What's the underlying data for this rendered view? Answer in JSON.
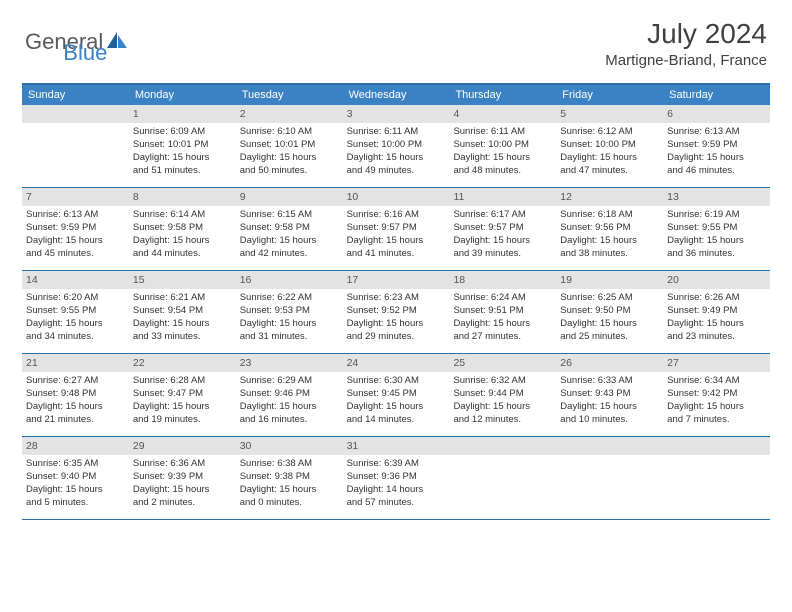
{
  "logo": {
    "text1": "General",
    "text2": "Blue"
  },
  "title": "July 2024",
  "location": "Martigne-Briand, France",
  "weekdays": [
    "Sunday",
    "Monday",
    "Tuesday",
    "Wednesday",
    "Thursday",
    "Friday",
    "Saturday"
  ],
  "colors": {
    "header_bg": "#3b82c4",
    "border": "#2a6faa",
    "daynum_bg": "#e3e3e3",
    "text": "#333333"
  },
  "weeks": [
    [
      {
        "n": "",
        "sr": "",
        "ss": "",
        "dl1": "",
        "dl2": ""
      },
      {
        "n": "1",
        "sr": "Sunrise: 6:09 AM",
        "ss": "Sunset: 10:01 PM",
        "dl1": "Daylight: 15 hours",
        "dl2": "and 51 minutes."
      },
      {
        "n": "2",
        "sr": "Sunrise: 6:10 AM",
        "ss": "Sunset: 10:01 PM",
        "dl1": "Daylight: 15 hours",
        "dl2": "and 50 minutes."
      },
      {
        "n": "3",
        "sr": "Sunrise: 6:11 AM",
        "ss": "Sunset: 10:00 PM",
        "dl1": "Daylight: 15 hours",
        "dl2": "and 49 minutes."
      },
      {
        "n": "4",
        "sr": "Sunrise: 6:11 AM",
        "ss": "Sunset: 10:00 PM",
        "dl1": "Daylight: 15 hours",
        "dl2": "and 48 minutes."
      },
      {
        "n": "5",
        "sr": "Sunrise: 6:12 AM",
        "ss": "Sunset: 10:00 PM",
        "dl1": "Daylight: 15 hours",
        "dl2": "and 47 minutes."
      },
      {
        "n": "6",
        "sr": "Sunrise: 6:13 AM",
        "ss": "Sunset: 9:59 PM",
        "dl1": "Daylight: 15 hours",
        "dl2": "and 46 minutes."
      }
    ],
    [
      {
        "n": "7",
        "sr": "Sunrise: 6:13 AM",
        "ss": "Sunset: 9:59 PM",
        "dl1": "Daylight: 15 hours",
        "dl2": "and 45 minutes."
      },
      {
        "n": "8",
        "sr": "Sunrise: 6:14 AM",
        "ss": "Sunset: 9:58 PM",
        "dl1": "Daylight: 15 hours",
        "dl2": "and 44 minutes."
      },
      {
        "n": "9",
        "sr": "Sunrise: 6:15 AM",
        "ss": "Sunset: 9:58 PM",
        "dl1": "Daylight: 15 hours",
        "dl2": "and 42 minutes."
      },
      {
        "n": "10",
        "sr": "Sunrise: 6:16 AM",
        "ss": "Sunset: 9:57 PM",
        "dl1": "Daylight: 15 hours",
        "dl2": "and 41 minutes."
      },
      {
        "n": "11",
        "sr": "Sunrise: 6:17 AM",
        "ss": "Sunset: 9:57 PM",
        "dl1": "Daylight: 15 hours",
        "dl2": "and 39 minutes."
      },
      {
        "n": "12",
        "sr": "Sunrise: 6:18 AM",
        "ss": "Sunset: 9:56 PM",
        "dl1": "Daylight: 15 hours",
        "dl2": "and 38 minutes."
      },
      {
        "n": "13",
        "sr": "Sunrise: 6:19 AM",
        "ss": "Sunset: 9:55 PM",
        "dl1": "Daylight: 15 hours",
        "dl2": "and 36 minutes."
      }
    ],
    [
      {
        "n": "14",
        "sr": "Sunrise: 6:20 AM",
        "ss": "Sunset: 9:55 PM",
        "dl1": "Daylight: 15 hours",
        "dl2": "and 34 minutes."
      },
      {
        "n": "15",
        "sr": "Sunrise: 6:21 AM",
        "ss": "Sunset: 9:54 PM",
        "dl1": "Daylight: 15 hours",
        "dl2": "and 33 minutes."
      },
      {
        "n": "16",
        "sr": "Sunrise: 6:22 AM",
        "ss": "Sunset: 9:53 PM",
        "dl1": "Daylight: 15 hours",
        "dl2": "and 31 minutes."
      },
      {
        "n": "17",
        "sr": "Sunrise: 6:23 AM",
        "ss": "Sunset: 9:52 PM",
        "dl1": "Daylight: 15 hours",
        "dl2": "and 29 minutes."
      },
      {
        "n": "18",
        "sr": "Sunrise: 6:24 AM",
        "ss": "Sunset: 9:51 PM",
        "dl1": "Daylight: 15 hours",
        "dl2": "and 27 minutes."
      },
      {
        "n": "19",
        "sr": "Sunrise: 6:25 AM",
        "ss": "Sunset: 9:50 PM",
        "dl1": "Daylight: 15 hours",
        "dl2": "and 25 minutes."
      },
      {
        "n": "20",
        "sr": "Sunrise: 6:26 AM",
        "ss": "Sunset: 9:49 PM",
        "dl1": "Daylight: 15 hours",
        "dl2": "and 23 minutes."
      }
    ],
    [
      {
        "n": "21",
        "sr": "Sunrise: 6:27 AM",
        "ss": "Sunset: 9:48 PM",
        "dl1": "Daylight: 15 hours",
        "dl2": "and 21 minutes."
      },
      {
        "n": "22",
        "sr": "Sunrise: 6:28 AM",
        "ss": "Sunset: 9:47 PM",
        "dl1": "Daylight: 15 hours",
        "dl2": "and 19 minutes."
      },
      {
        "n": "23",
        "sr": "Sunrise: 6:29 AM",
        "ss": "Sunset: 9:46 PM",
        "dl1": "Daylight: 15 hours",
        "dl2": "and 16 minutes."
      },
      {
        "n": "24",
        "sr": "Sunrise: 6:30 AM",
        "ss": "Sunset: 9:45 PM",
        "dl1": "Daylight: 15 hours",
        "dl2": "and 14 minutes."
      },
      {
        "n": "25",
        "sr": "Sunrise: 6:32 AM",
        "ss": "Sunset: 9:44 PM",
        "dl1": "Daylight: 15 hours",
        "dl2": "and 12 minutes."
      },
      {
        "n": "26",
        "sr": "Sunrise: 6:33 AM",
        "ss": "Sunset: 9:43 PM",
        "dl1": "Daylight: 15 hours",
        "dl2": "and 10 minutes."
      },
      {
        "n": "27",
        "sr": "Sunrise: 6:34 AM",
        "ss": "Sunset: 9:42 PM",
        "dl1": "Daylight: 15 hours",
        "dl2": "and 7 minutes."
      }
    ],
    [
      {
        "n": "28",
        "sr": "Sunrise: 6:35 AM",
        "ss": "Sunset: 9:40 PM",
        "dl1": "Daylight: 15 hours",
        "dl2": "and 5 minutes."
      },
      {
        "n": "29",
        "sr": "Sunrise: 6:36 AM",
        "ss": "Sunset: 9:39 PM",
        "dl1": "Daylight: 15 hours",
        "dl2": "and 2 minutes."
      },
      {
        "n": "30",
        "sr": "Sunrise: 6:38 AM",
        "ss": "Sunset: 9:38 PM",
        "dl1": "Daylight: 15 hours",
        "dl2": "and 0 minutes."
      },
      {
        "n": "31",
        "sr": "Sunrise: 6:39 AM",
        "ss": "Sunset: 9:36 PM",
        "dl1": "Daylight: 14 hours",
        "dl2": "and 57 minutes."
      },
      {
        "n": "",
        "sr": "",
        "ss": "",
        "dl1": "",
        "dl2": ""
      },
      {
        "n": "",
        "sr": "",
        "ss": "",
        "dl1": "",
        "dl2": ""
      },
      {
        "n": "",
        "sr": "",
        "ss": "",
        "dl1": "",
        "dl2": ""
      }
    ]
  ]
}
